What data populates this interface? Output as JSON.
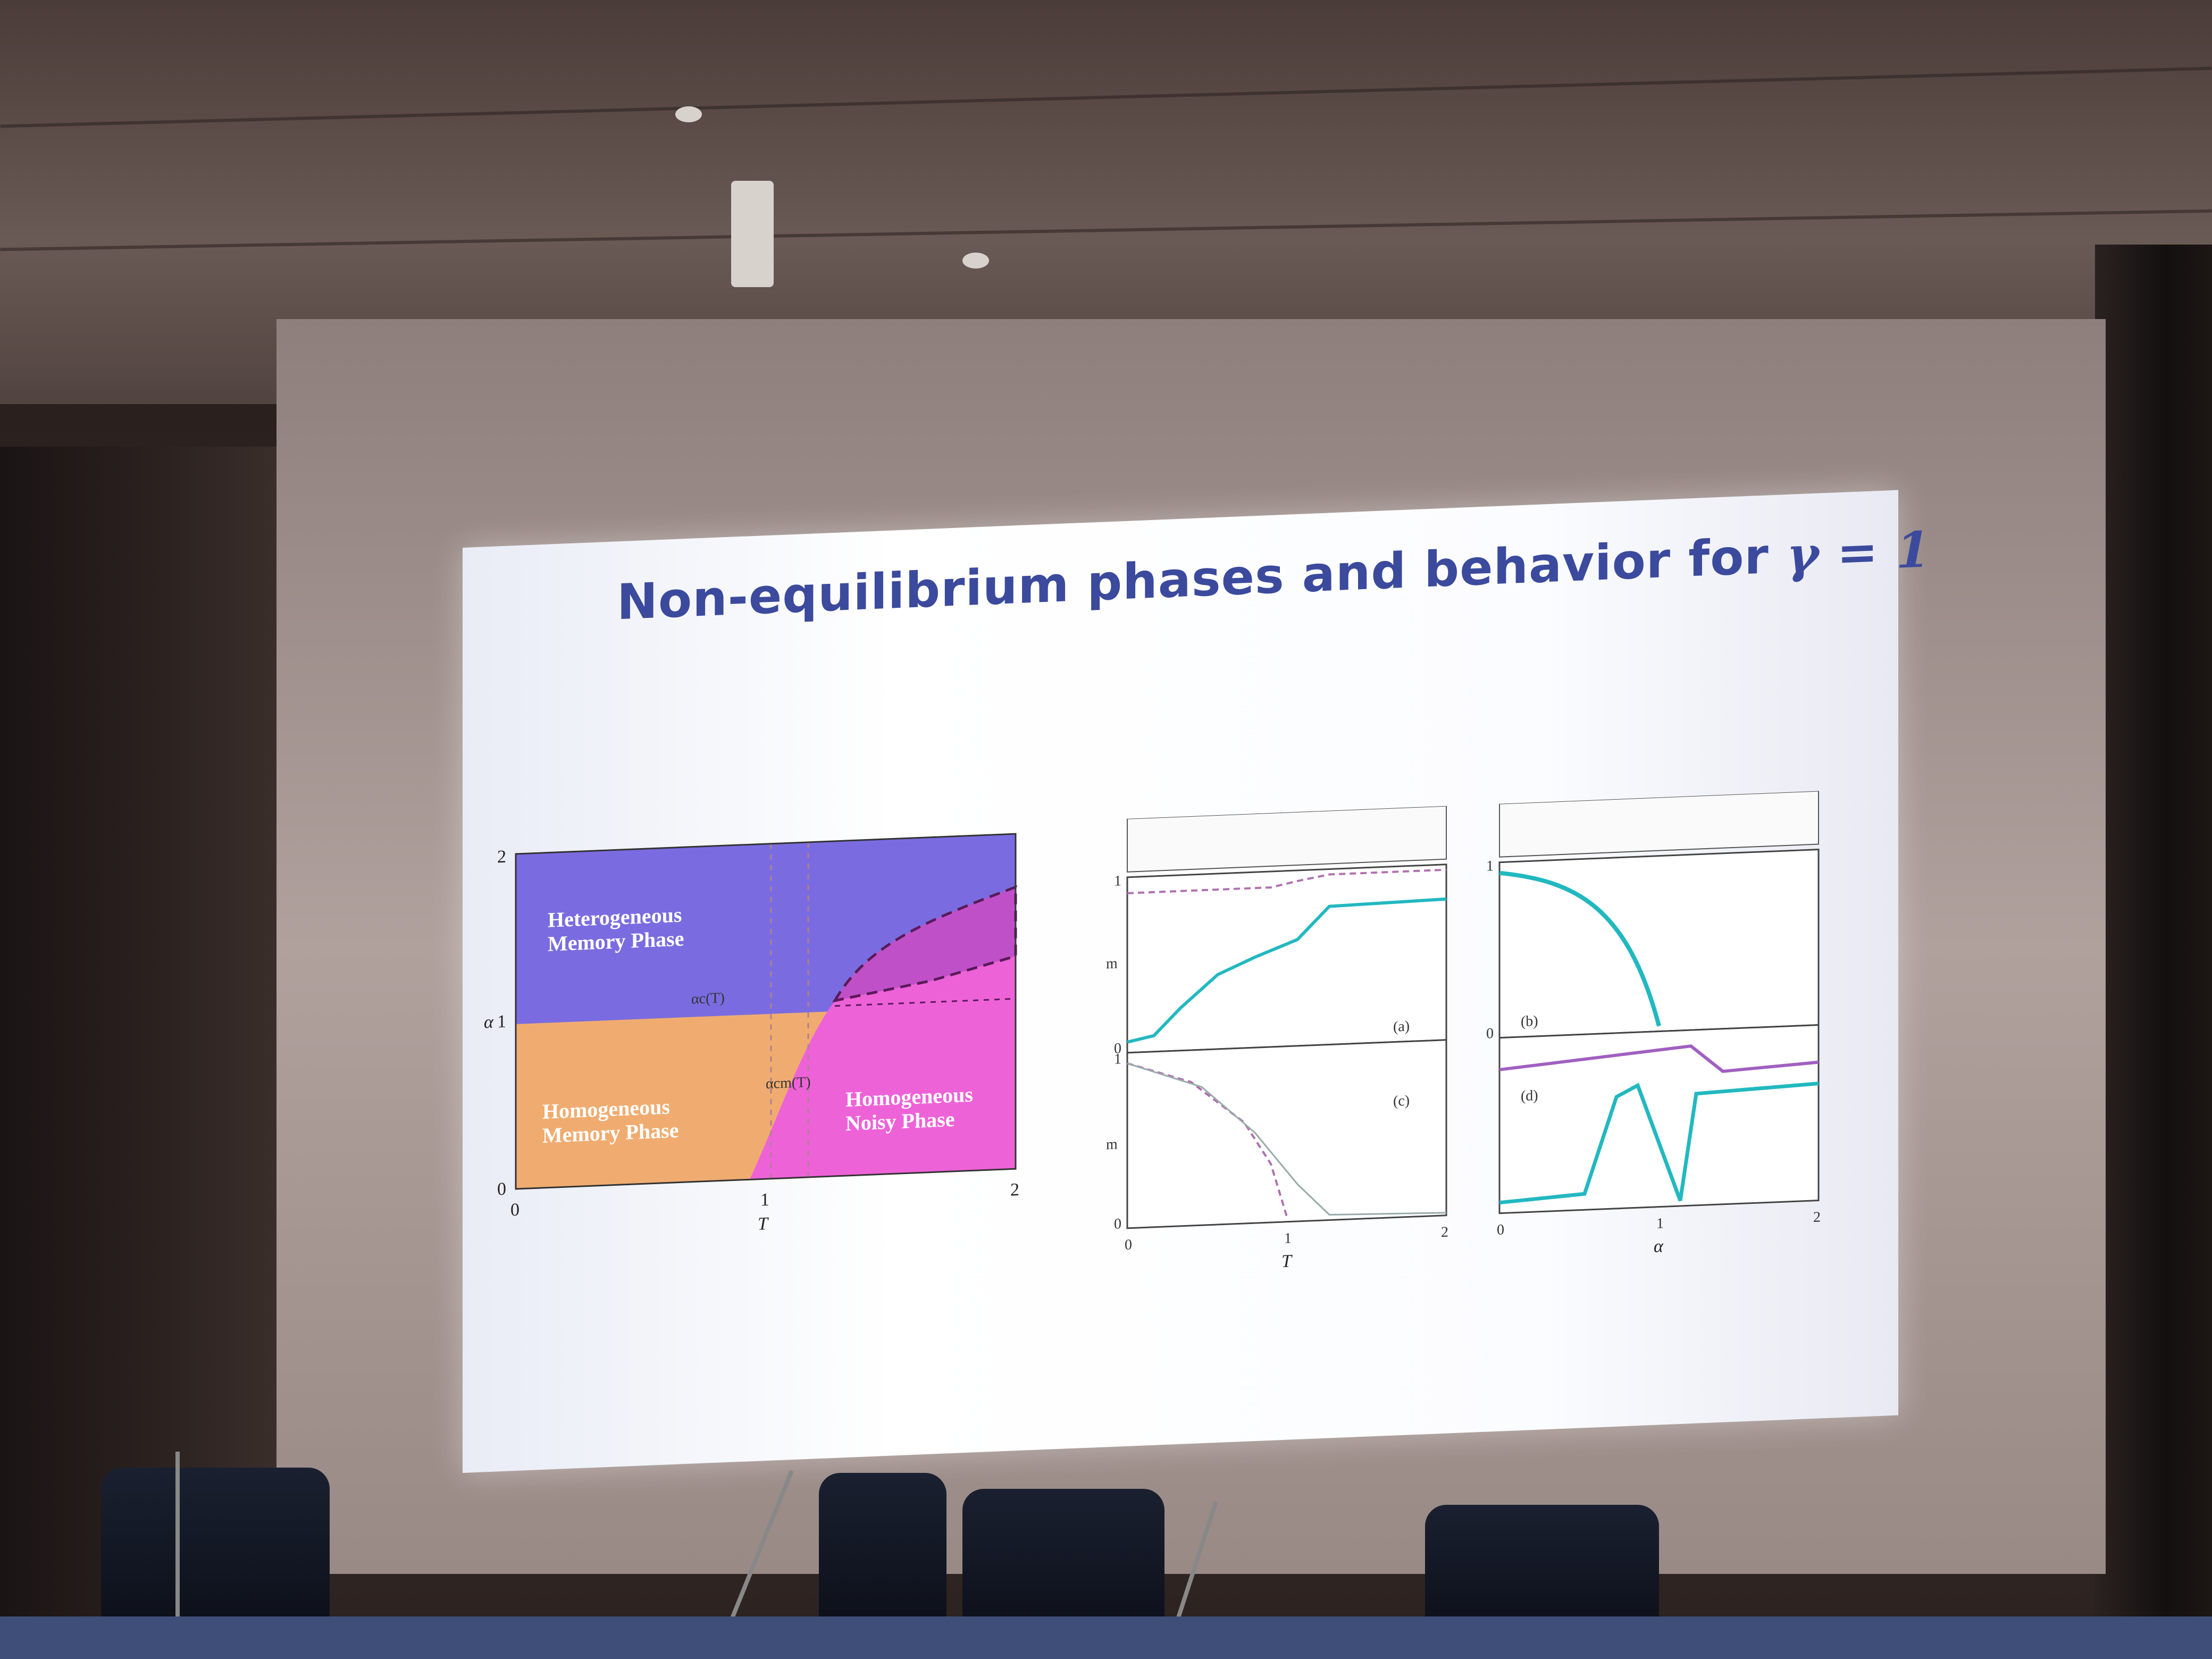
{
  "slide": {
    "title": "Non-equilibrium phases and behavior for",
    "title_symbol": "γ = 1"
  },
  "phase_diagram": {
    "x_ticks": [
      "0",
      "1",
      "2"
    ],
    "y_ticks": [
      "0",
      "1",
      "2"
    ],
    "xlabel": "T",
    "ylabel": "α",
    "regions": {
      "heterogeneous_line1": "Heterogeneous",
      "heterogeneous_line2": "Memory Phase",
      "hom_memory_line1": "Homogeneous",
      "hom_memory_line2": "Memory Phase",
      "hom_noisy_line1": "Homogeneous",
      "hom_noisy_line2": "Noisy Phase"
    },
    "curve_labels": {
      "upper": "αc(T)",
      "lower": "αcm(T)"
    },
    "colors": {
      "heterogeneous": "#7a6ce0",
      "hom_memory": "#f0ac70",
      "hom_noisy": "#ee62d8"
    }
  },
  "panels_T": {
    "xlabel": "T",
    "x_ticks": [
      "0",
      "1",
      "2"
    ],
    "top": {
      "ylabel": "m",
      "y_ticks": [
        "0",
        "1"
      ],
      "tag": "(a)"
    },
    "bottom": {
      "ylabel": "m",
      "y_ticks": [
        "0",
        "1"
      ],
      "tag": "(c)"
    }
  },
  "panels_alpha": {
    "xlabel": "α",
    "x_ticks": [
      "0",
      "1",
      "2"
    ],
    "top": {
      "y_ticks": [
        "0",
        "1"
      ],
      "tag": "(b)"
    },
    "bottom": {
      "tag": "(d)"
    }
  }
}
